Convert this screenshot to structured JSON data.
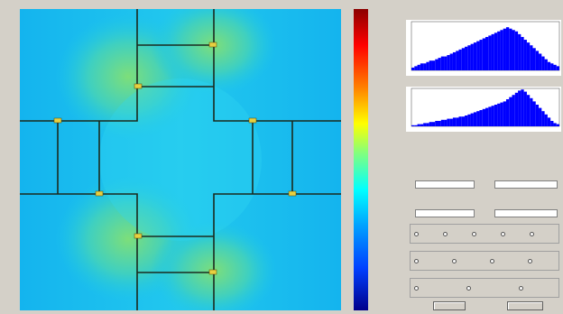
{
  "plot": {
    "title": ""
  },
  "colorbar": {
    "ticks": [
      "",
      "",
      "",
      "",
      "",
      "",
      "",
      "",
      "",
      "",
      ""
    ]
  },
  "chart_data": [
    {
      "type": "bar",
      "title": "",
      "subtitle": "",
      "values": [
        2,
        3,
        4,
        5,
        5,
        6,
        7,
        7,
        8,
        9,
        10,
        10,
        11,
        12,
        13,
        14,
        15,
        16,
        17,
        18,
        19,
        20,
        21,
        22,
        23,
        24,
        25,
        26,
        27,
        28,
        29,
        30,
        31,
        30,
        29,
        28,
        26,
        24,
        22,
        20,
        18,
        16,
        14,
        12,
        10,
        8,
        6,
        5,
        4,
        3
      ],
      "color": "#0000ff",
      "ylim": [
        0,
        35
      ]
    },
    {
      "type": "bar",
      "title": "",
      "values": [
        1,
        1,
        2,
        2,
        3,
        3,
        4,
        4,
        5,
        5,
        6,
        6,
        7,
        7,
        8,
        8,
        9,
        9,
        10,
        11,
        12,
        13,
        14,
        15,
        16,
        17,
        18,
        19,
        20,
        21,
        22,
        23,
        25,
        27,
        29,
        31,
        33,
        34,
        32,
        29,
        26,
        23,
        20,
        17,
        14,
        11,
        8,
        5,
        3,
        2
      ],
      "color": "#0000ff",
      "ylim": [
        0,
        35
      ]
    }
  ],
  "controls": {
    "field1_label": "",
    "field1_value": "",
    "field2_label": "",
    "field2_value": "",
    "field3_label": "",
    "field3_value": "",
    "field4_label": "",
    "field4_value": "",
    "group1_title": "",
    "group1_options": [
      "",
      "",
      "",
      "",
      ""
    ],
    "group2_title": "",
    "group2_options": [
      "",
      "",
      "",
      ""
    ],
    "group3_title": "",
    "group3_options": [
      "",
      "",
      ""
    ],
    "button1_label": "",
    "button2_label": ""
  }
}
